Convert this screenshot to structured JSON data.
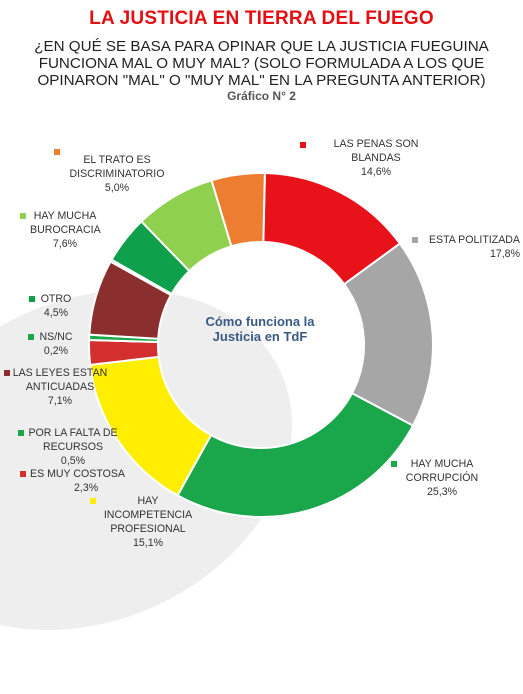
{
  "header": {
    "title": "LA JUSTICIA EN TIERRA DEL FUEGO",
    "subtitle": "¿EN QUÉ SE BASA PARA OPINAR QUE LA JUSTICIA FUEGUINA FUNCIONA MAL O MUY MAL? (SOLO FORMULADA A LOS QUE OPINARON \"MAL\" O \"MUY MAL\" EN LA PREGUNTA ANTERIOR)",
    "figure_label": "Gráfico N° 2"
  },
  "center_label": "Cómo funciona la Justicia en TdF",
  "chart_data": {
    "type": "pie",
    "style": "donut",
    "slices": [
      {
        "label": "LAS PENAS SON BLANDAS",
        "value": 14.6,
        "display": "14,6%",
        "color": "#e8121b"
      },
      {
        "label": "ESTA POLITIZADA",
        "value": 17.8,
        "display": "17,8%",
        "color": "#a6a6a6"
      },
      {
        "label": "HAY MUCHA CORRUPCIÓN",
        "value": 25.3,
        "display": "25,3%",
        "color": "#1aa64a"
      },
      {
        "label": "HAY INCOMPETENCIA PROFESIONAL",
        "value": 15.1,
        "display": "15,1%",
        "color": "#ffee00"
      },
      {
        "label": "ES MUY COSTOSA",
        "value": 2.3,
        "display": "2,3%",
        "color": "#d32f2f"
      },
      {
        "label": "POR LA FALTA DE RECURSOS",
        "value": 0.5,
        "display": "0,5%",
        "color": "#1aa64a"
      },
      {
        "label": "LAS LEYES ESTAN ANTICUADAS",
        "value": 7.1,
        "display": "7,1%",
        "color": "#8b2e2e"
      },
      {
        "label": "NS/NC",
        "value": 0.2,
        "display": "0,2%",
        "color": "#1aa64a"
      },
      {
        "label": "OTRO",
        "value": 4.5,
        "display": "4,5%",
        "color": "#0ea04a"
      },
      {
        "label": "HAY MUCHA BUROCRACIA",
        "value": 7.6,
        "display": "7,6%",
        "color": "#8fd14f"
      },
      {
        "label": "EL TRATO ES DISCRIMINATORIO",
        "value": 5.0,
        "display": "5,0%",
        "color": "#ed7d31"
      }
    ]
  }
}
